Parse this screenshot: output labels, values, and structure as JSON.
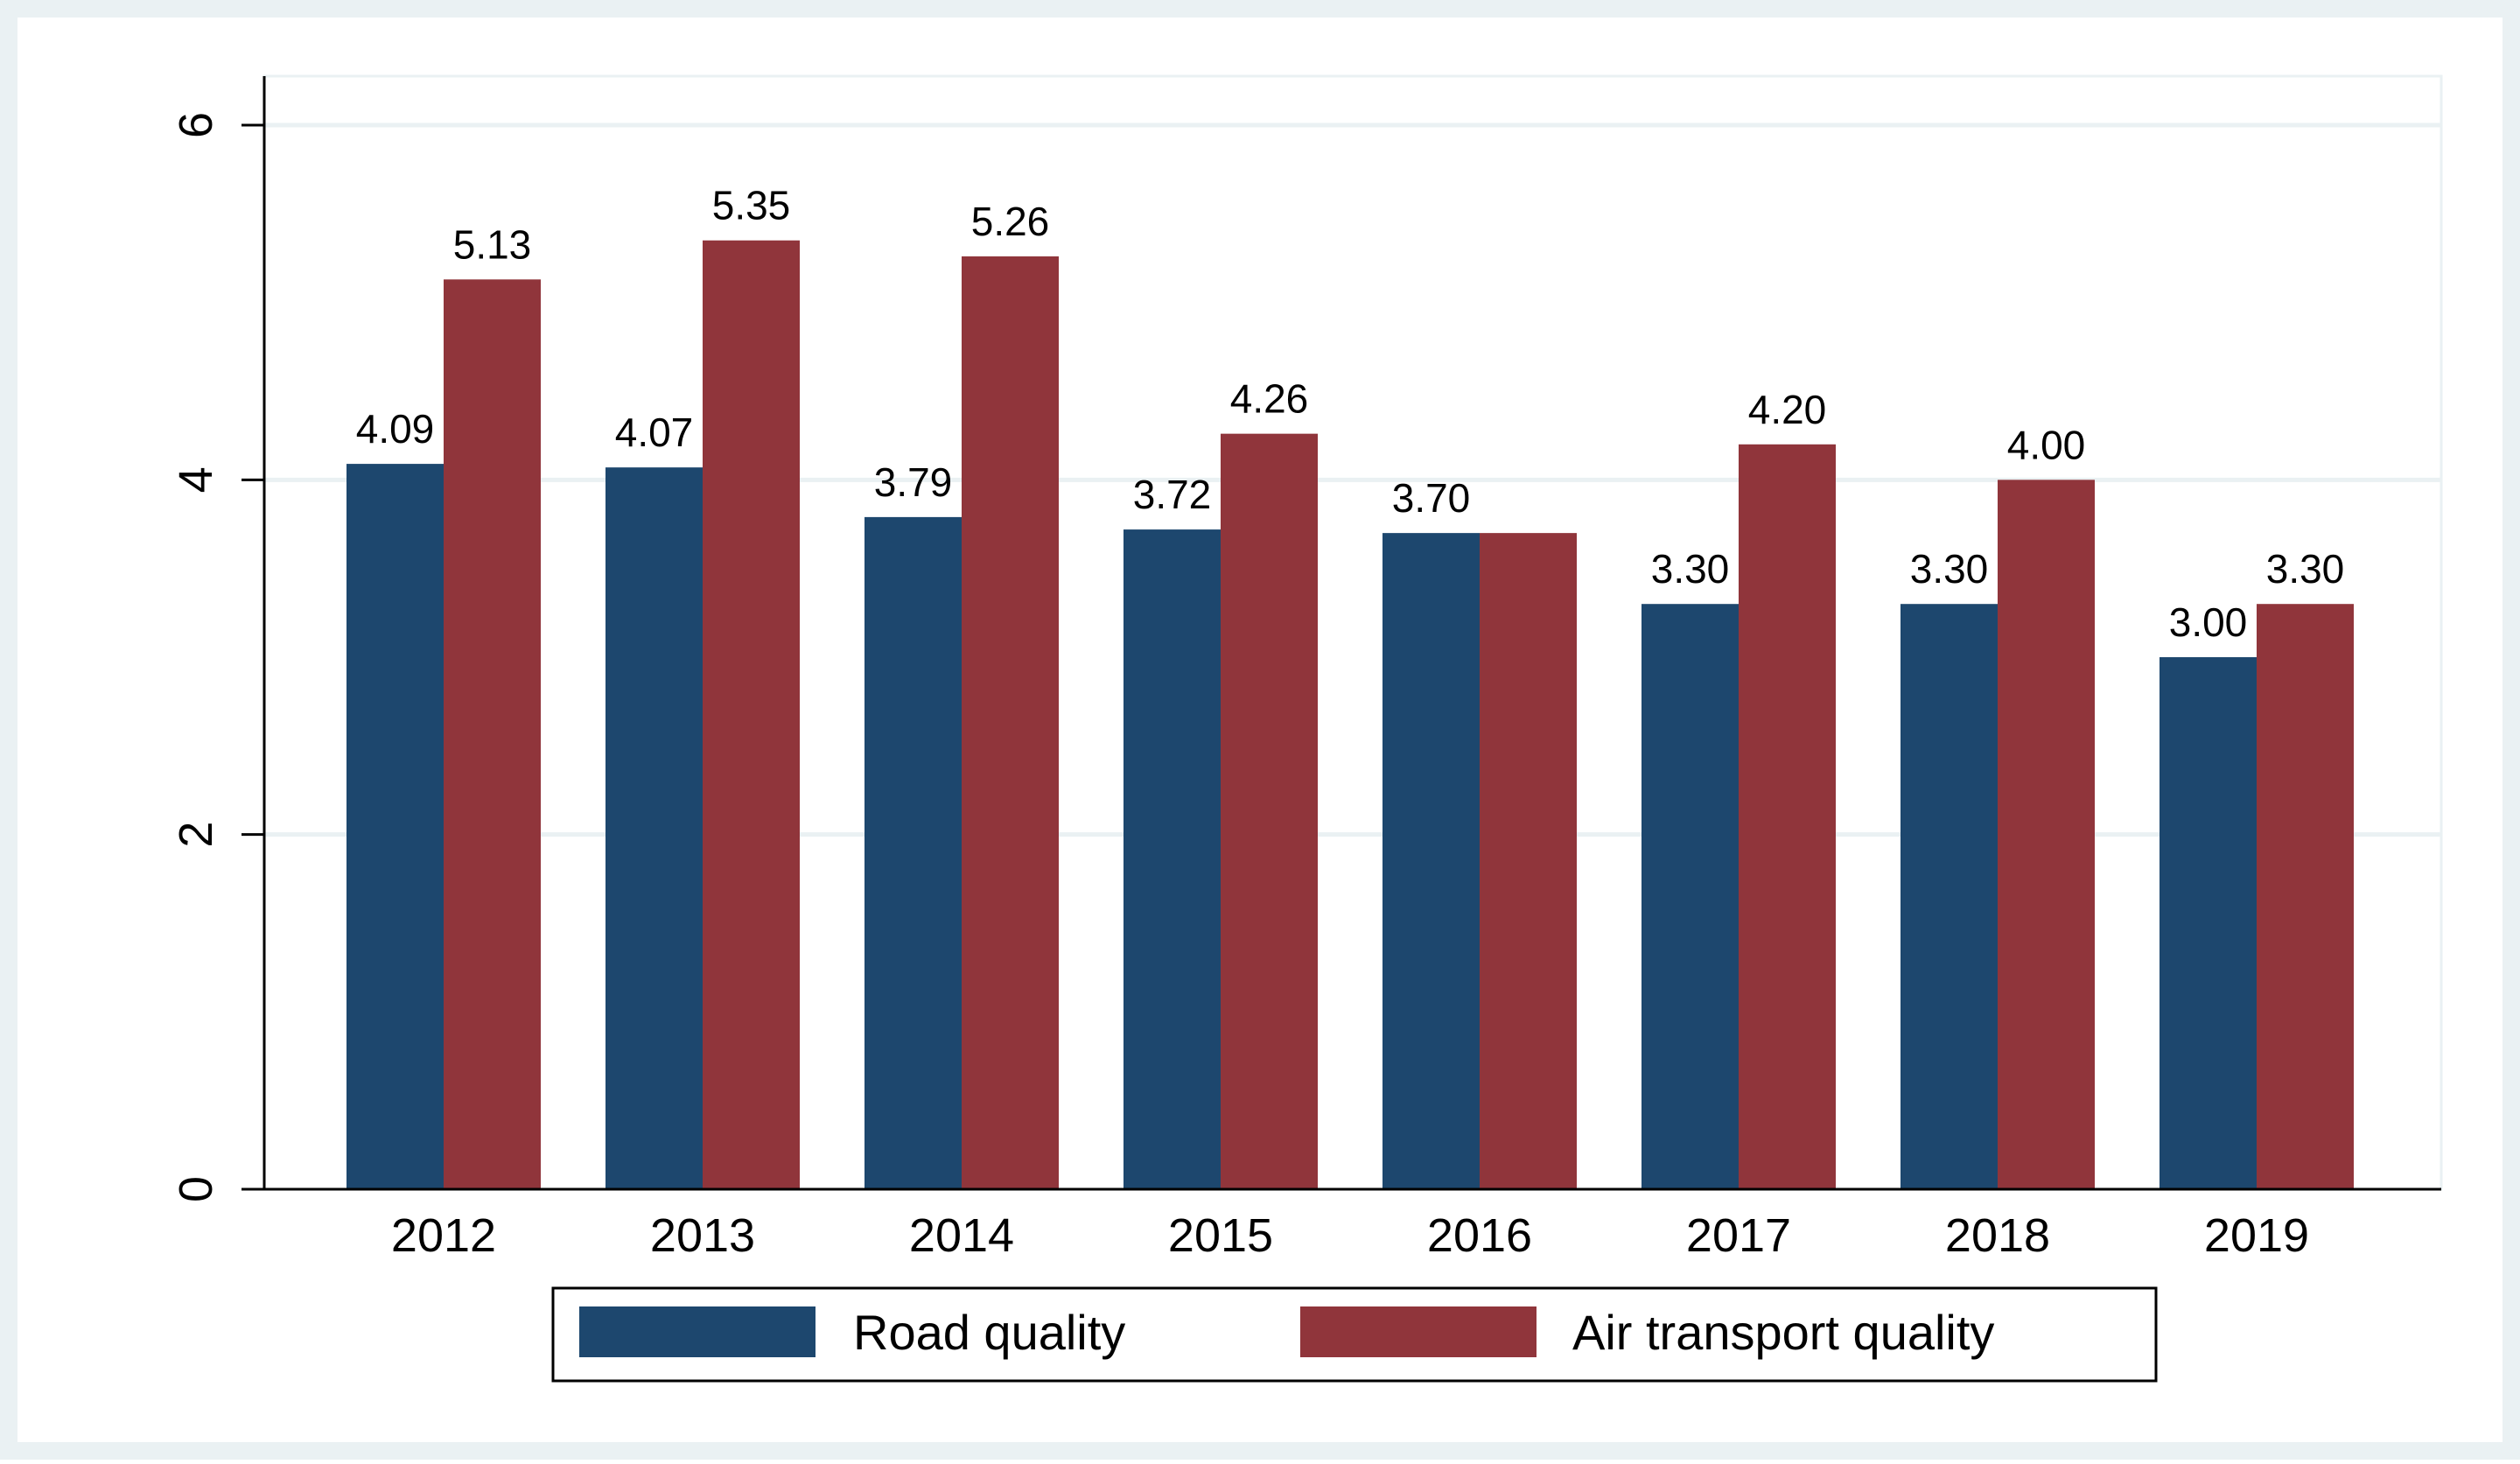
{
  "chart_data": {
    "type": "bar",
    "title": "",
    "xlabel": "",
    "ylabel": "",
    "categories": [
      "2012",
      "2013",
      "2014",
      "2015",
      "2016",
      "2017",
      "2018",
      "2019"
    ],
    "series": [
      {
        "name": "Road quality",
        "color": "#1D476E",
        "values": [
          4.09,
          4.07,
          3.79,
          3.72,
          3.7,
          3.3,
          3.3,
          3.0
        ],
        "labels": [
          "4.09",
          "4.07",
          "3.79",
          "3.72",
          "3.70",
          "3.30",
          "3.30",
          "3.00"
        ]
      },
      {
        "name": "Air transport quality",
        "color": "#90353B",
        "values": [
          5.13,
          5.35,
          5.26,
          4.26,
          3.7,
          4.2,
          4.0,
          3.3
        ],
        "labels": [
          "5.13",
          "5.35",
          "5.26",
          "4.26",
          "",
          "4.20",
          "4.00",
          "3.30"
        ]
      }
    ],
    "ylim": [
      0,
      6
    ],
    "yticks": [
      0,
      2,
      4,
      6
    ],
    "ytick_labels": [
      "0",
      "2",
      "4",
      "6"
    ],
    "grid": true,
    "legend": {
      "position": "bottom",
      "entries": [
        "Road quality",
        "Air transport quality"
      ]
    },
    "colors": {
      "outer_background": "#EAF1F3",
      "plot_background": "#FFFFFF",
      "gridline": "#EAF1F3",
      "axis": "#000000"
    }
  }
}
